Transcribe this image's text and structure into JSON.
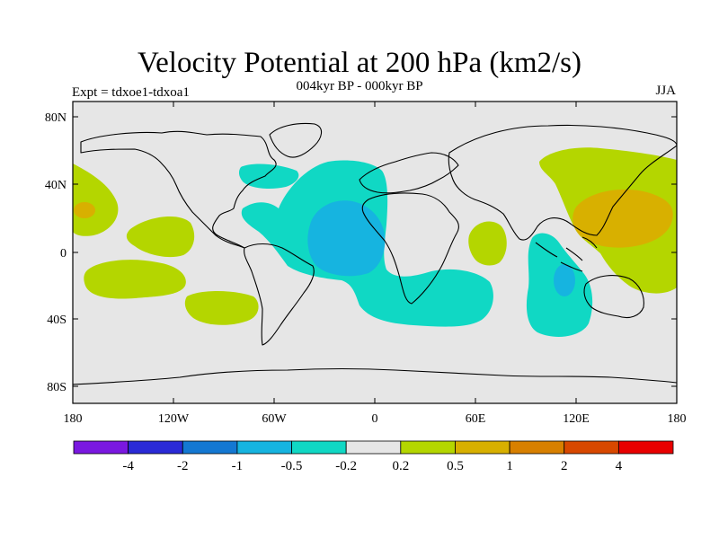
{
  "title": "Velocity Potential at 200 hPa (km2/s)",
  "subtitle": "004kyr BP - 000kyr BP",
  "expt_label": "Expt = tdxoe1-tdxoa1",
  "season": "JJA",
  "lat_labels": [
    "80N",
    "40N",
    "0",
    "40S",
    "80S"
  ],
  "lon_labels": [
    "180",
    "120W",
    "60W",
    "0",
    "60E",
    "120E",
    "180"
  ],
  "colorbar": {
    "colors": [
      "#7a18e0",
      "#2a2ad6",
      "#1478d2",
      "#16b4e0",
      "#10d8c4",
      "#e6e6e6",
      "#b4d600",
      "#d8b000",
      "#d88000",
      "#d84800",
      "#e80000"
    ],
    "labels": [
      "-4",
      "-2",
      "-1",
      "-0.5",
      "-0.2",
      "0.2",
      "0.5",
      "1",
      "2",
      "4"
    ]
  },
  "colors": {
    "background": "#e6e6e6",
    "positive_weak": "#b4d600",
    "positive_mid": "#d8b000",
    "negative_weak": "#10d8c4",
    "negative_mid": "#16b4e0"
  }
}
